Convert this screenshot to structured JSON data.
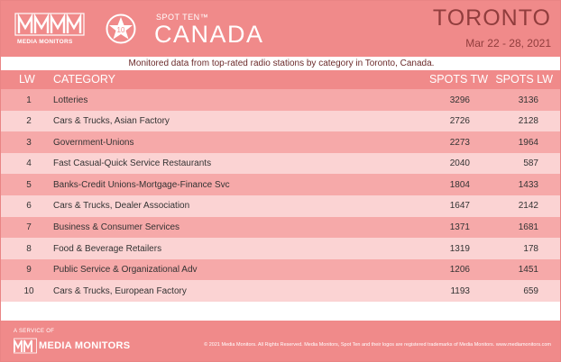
{
  "header": {
    "logo_text": "MEDIA MONITORS",
    "badge_number": "10",
    "brand_small": "SPOT TEN™",
    "brand_big": "CANADA",
    "city": "TORONTO",
    "date_range": "Mar 22 - 28, 2021"
  },
  "subtitle": "Monitored data from top-rated radio stations by category in Toronto, Canada.",
  "table": {
    "headers": {
      "lw": "LW",
      "category": "CATEGORY",
      "spots_tw": "SPOTS TW",
      "spots_lw": "SPOTS LW"
    },
    "rows": [
      {
        "rank": "1",
        "category": "Lotteries",
        "spots_tw": "3296",
        "spots_lw": "3136"
      },
      {
        "rank": "2",
        "category": "Cars & Trucks, Asian Factory",
        "spots_tw": "2726",
        "spots_lw": "2128"
      },
      {
        "rank": "3",
        "category": "Government-Unions",
        "spots_tw": "2273",
        "spots_lw": "1964"
      },
      {
        "rank": "4",
        "category": "Fast Casual-Quick Service Restaurants",
        "spots_tw": "2040",
        "spots_lw": "587"
      },
      {
        "rank": "5",
        "category": "Banks-Credit Unions-Mortgage-Finance Svc",
        "spots_tw": "1804",
        "spots_lw": "1433"
      },
      {
        "rank": "6",
        "category": "Cars & Trucks, Dealer Association",
        "spots_tw": "1647",
        "spots_lw": "2142"
      },
      {
        "rank": "7",
        "category": "Business & Consumer Services",
        "spots_tw": "1371",
        "spots_lw": "1681"
      },
      {
        "rank": "8",
        "category": "Food & Beverage Retailers",
        "spots_tw": "1319",
        "spots_lw": "178"
      },
      {
        "rank": "9",
        "category": "Public Service & Organizational Adv",
        "spots_tw": "1206",
        "spots_lw": "1451"
      },
      {
        "rank": "10",
        "category": "Cars & Trucks, European Factory",
        "spots_tw": "1193",
        "spots_lw": "659"
      }
    ]
  },
  "footer": {
    "service_label": "A SERVICE OF",
    "logo_text": "MEDIA MONITORS",
    "copyright": "© 2021 Media Monitors. All Rights Reserved. Media Monitors, Spot Ten and their logos are registered trademarks of Media Monitors. www.mediamonitors.com"
  },
  "colors": {
    "header_bg": "#f08a8a",
    "row_dark": "#f6a9a9",
    "row_light": "#fbd3d3",
    "accent_text": "#7a2a2a"
  }
}
